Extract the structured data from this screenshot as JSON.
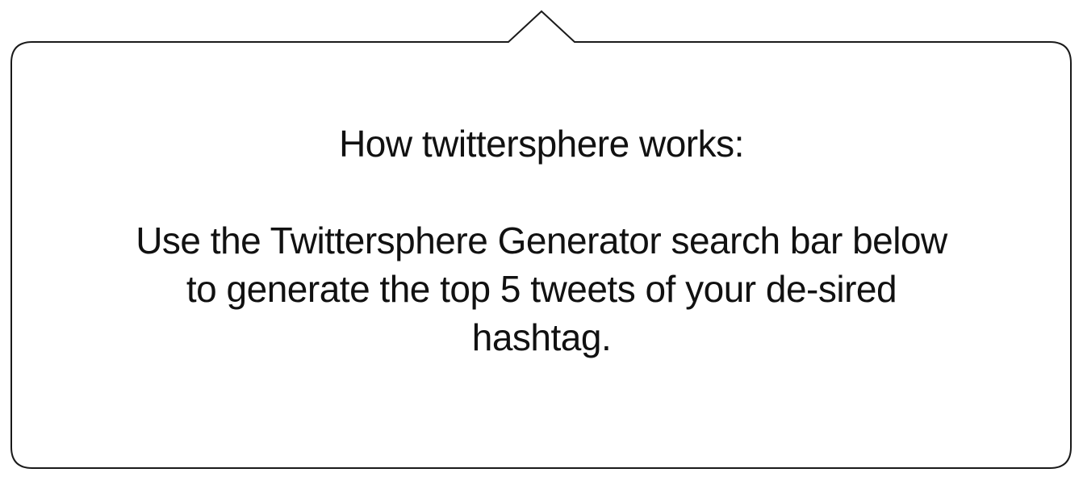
{
  "tooltip": {
    "heading": "How twittersphere works:",
    "body": "Use the Twittersphere Generator search bar below to generate the top 5 tweets of your de-sired hashtag."
  },
  "colors": {
    "border": "#1a1a1a",
    "background": "#ffffff",
    "text": "#111111"
  }
}
